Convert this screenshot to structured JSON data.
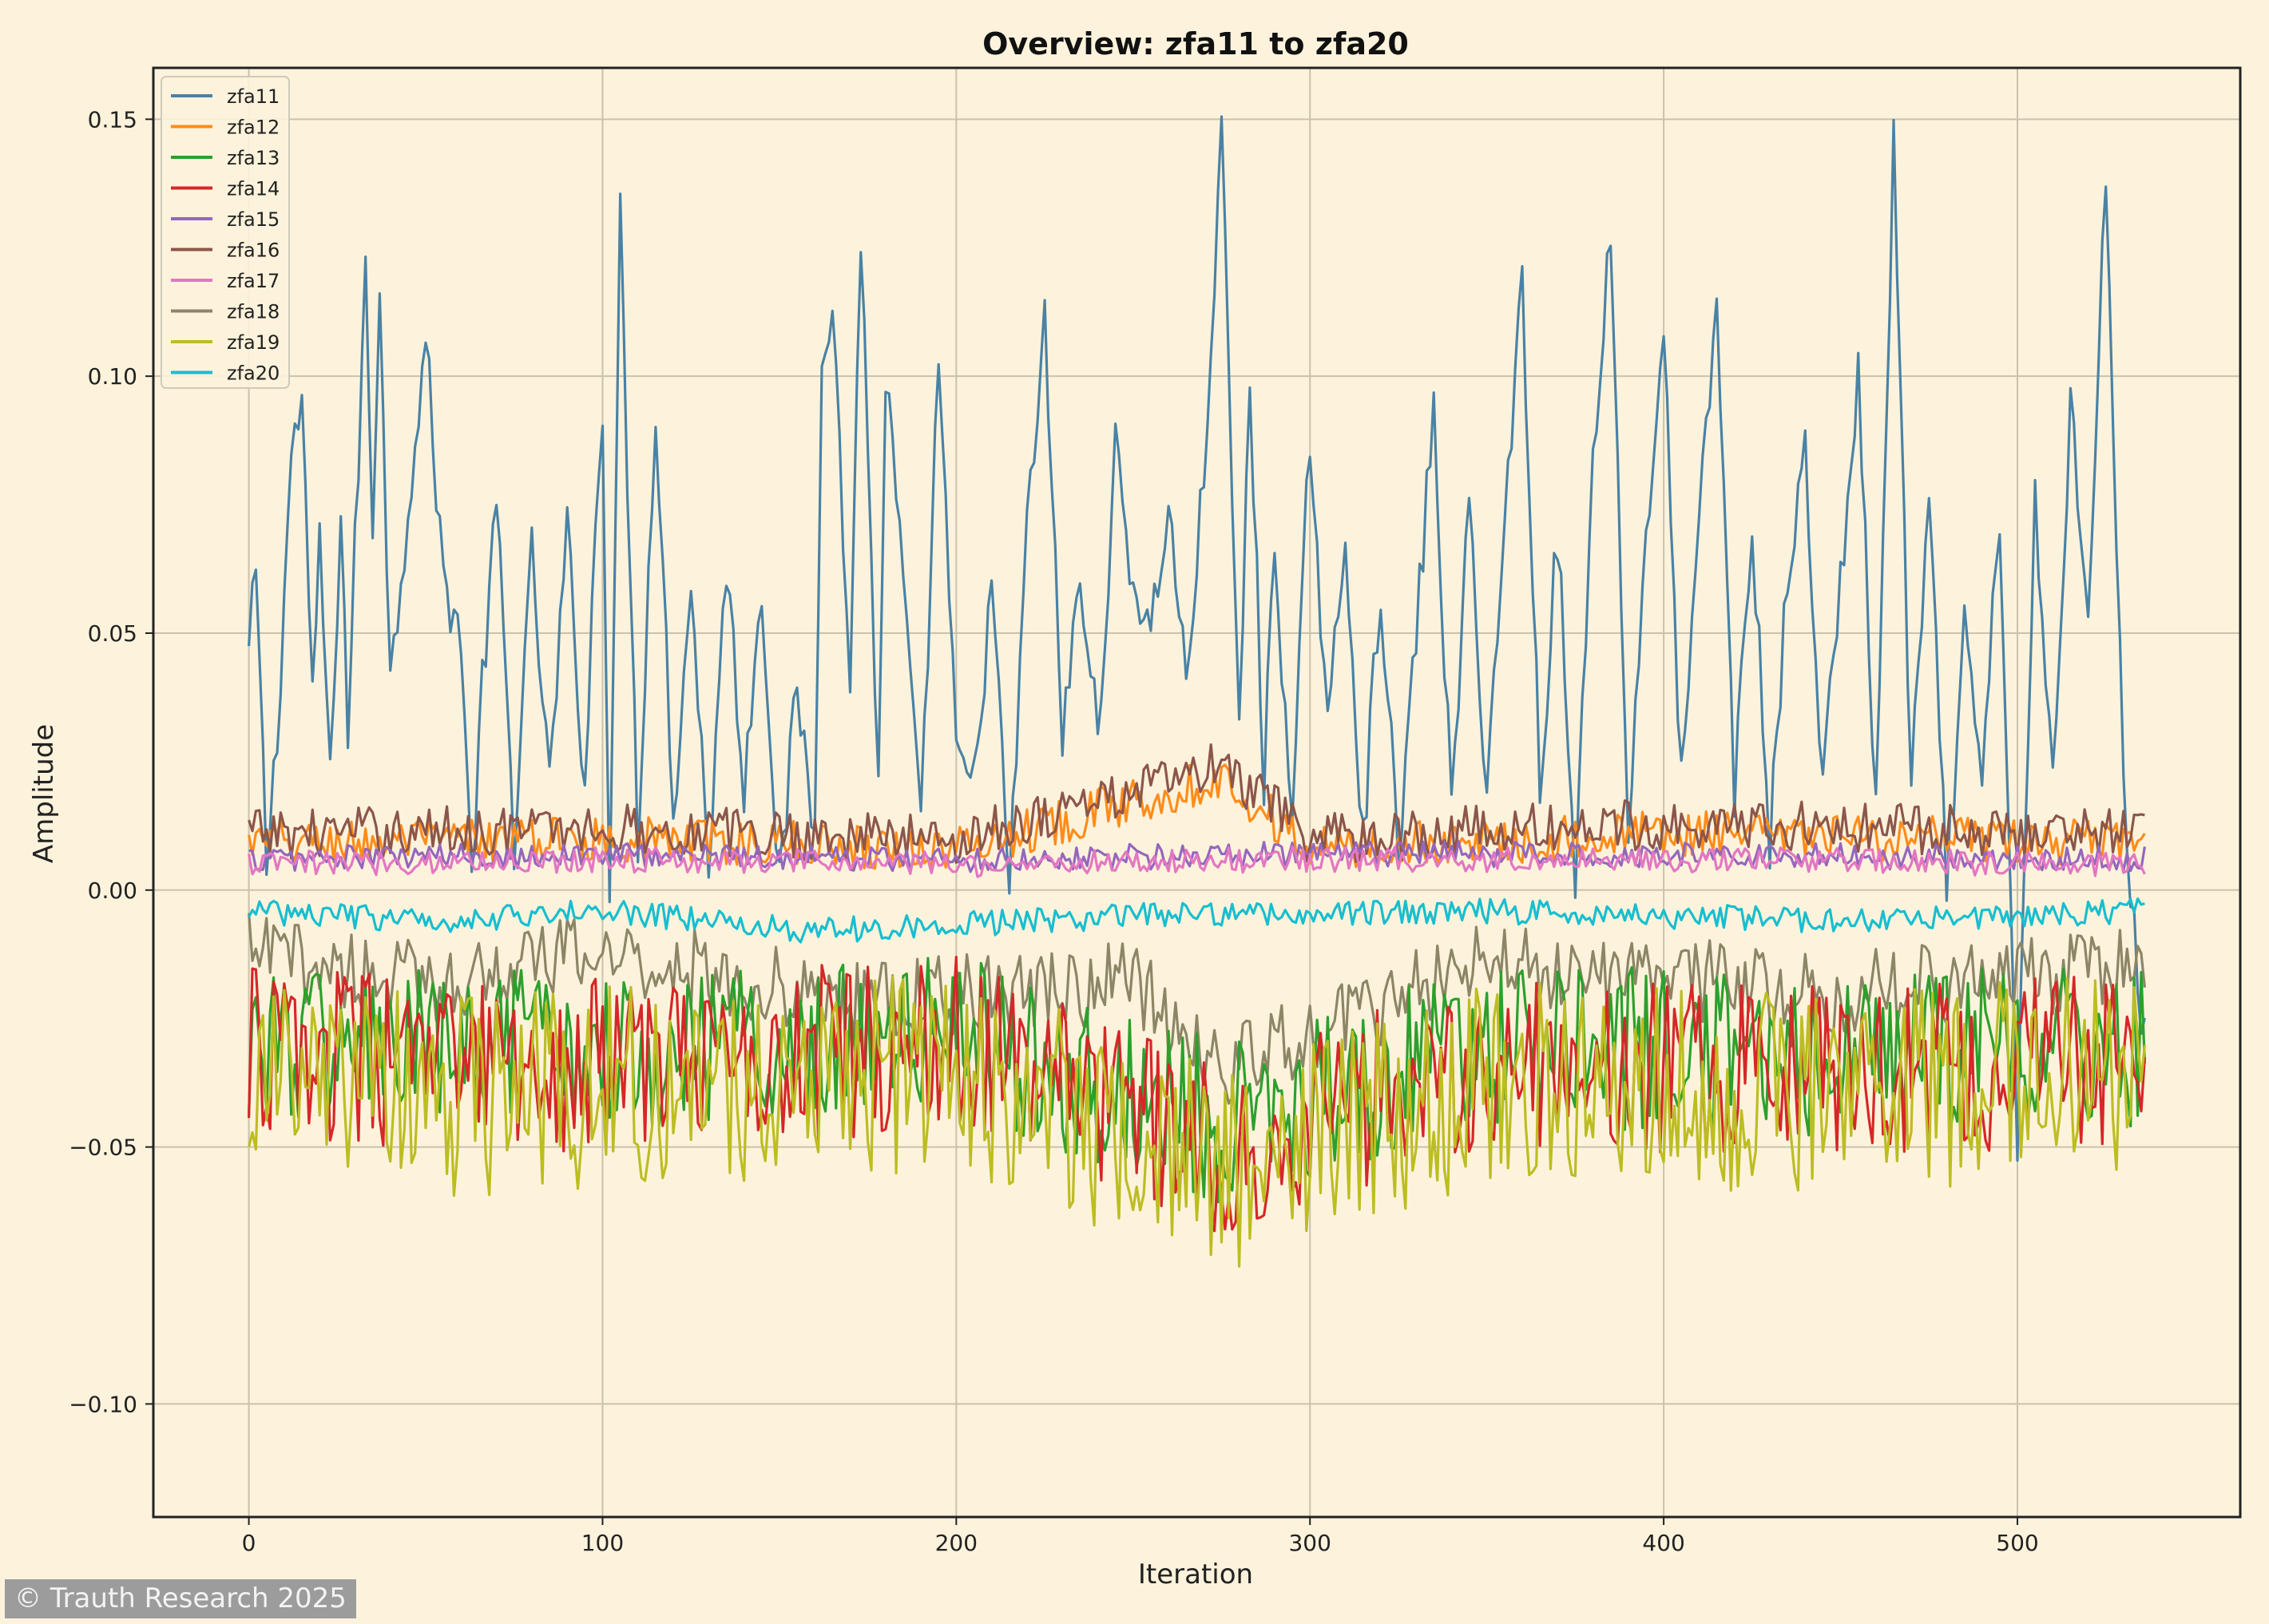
{
  "colors": {
    "background": "#fdf3dc",
    "plot_background": "#fdf3dc",
    "grid": "#c9c2ad",
    "axis": "#222222"
  },
  "chart_data": {
    "type": "line",
    "title": "Overview: zfa11 to zfa20",
    "xlabel": "Iteration",
    "ylabel": "Amplitude",
    "xlim": [
      -27,
      563
    ],
    "ylim": [
      -0.122,
      0.16
    ],
    "xticks": [
      0,
      100,
      200,
      300,
      400,
      500
    ],
    "xtick_labels": [
      "0",
      "100",
      "200",
      "300",
      "400",
      "500"
    ],
    "yticks": [
      0.15,
      0.1,
      0.05,
      0.0,
      -0.05,
      -0.1
    ],
    "ytick_labels": [
      "0.15",
      "0.10",
      "0.05",
      "0.00",
      "−0.05",
      "−0.10"
    ],
    "grid": true,
    "legend_position": "top-left",
    "n_points": 537,
    "series": [
      {
        "name": "zfa11",
        "color": "#4a82a4",
        "anchors": [
          [
            0,
            0.046
          ],
          [
            2,
            0.062
          ],
          [
            5,
            0.005
          ],
          [
            8,
            0.03
          ],
          [
            12,
            0.085
          ],
          [
            15,
            0.095
          ],
          [
            18,
            0.035
          ],
          [
            20,
            0.07
          ],
          [
            23,
            0.02
          ],
          [
            26,
            0.075
          ],
          [
            28,
            0.03
          ],
          [
            33,
            0.12
          ],
          [
            35,
            0.07
          ],
          [
            37,
            0.12
          ],
          [
            40,
            0.04
          ],
          [
            45,
            0.075
          ],
          [
            50,
            0.107
          ],
          [
            55,
            0.06
          ],
          [
            60,
            0.05
          ],
          [
            63,
            0.0
          ],
          [
            65,
            0.03
          ],
          [
            70,
            0.075
          ],
          [
            75,
            0.01
          ],
          [
            80,
            0.065
          ],
          [
            85,
            0.02
          ],
          [
            90,
            0.07
          ],
          [
            95,
            0.02
          ],
          [
            98,
            0.07
          ],
          [
            100,
            0.095
          ],
          [
            102,
            0.0
          ],
          [
            105,
            0.13
          ],
          [
            110,
            0.01
          ],
          [
            115,
            0.095
          ],
          [
            120,
            0.015
          ],
          [
            125,
            0.06
          ],
          [
            130,
            0.005
          ],
          [
            135,
            0.064
          ],
          [
            140,
            0.02
          ],
          [
            145,
            0.06
          ],
          [
            150,
            0.0
          ],
          [
            155,
            0.04
          ],
          [
            160,
            0.01
          ],
          [
            162,
            0.107
          ],
          [
            165,
            0.115
          ],
          [
            170,
            0.04
          ],
          [
            173,
            0.129
          ],
          [
            178,
            0.02
          ],
          [
            180,
            0.1
          ],
          [
            185,
            0.06
          ],
          [
            190,
            0.01
          ],
          [
            195,
            0.105
          ],
          [
            200,
            0.025
          ],
          [
            205,
            0.02
          ],
          [
            210,
            0.06
          ],
          [
            215,
            0.0
          ],
          [
            220,
            0.07
          ],
          [
            225,
            0.11
          ],
          [
            230,
            0.03
          ],
          [
            235,
            0.06
          ],
          [
            240,
            0.03
          ],
          [
            245,
            0.085
          ],
          [
            250,
            0.06
          ],
          [
            255,
            0.05
          ],
          [
            260,
            0.075
          ],
          [
            265,
            0.04
          ],
          [
            270,
            0.08
          ],
          [
            275,
            0.147
          ],
          [
            280,
            0.03
          ],
          [
            283,
            0.1
          ],
          [
            287,
            0.02
          ],
          [
            290,
            0.07
          ],
          [
            295,
            0.01
          ],
          [
            300,
            0.09
          ],
          [
            305,
            0.03
          ],
          [
            310,
            0.07
          ],
          [
            315,
            0.01
          ],
          [
            320,
            0.06
          ],
          [
            325,
            0.005
          ],
          [
            330,
            0.05
          ],
          [
            335,
            0.093
          ],
          [
            340,
            0.015
          ],
          [
            345,
            0.075
          ],
          [
            350,
            0.02
          ],
          [
            355,
            0.07
          ],
          [
            360,
            0.12
          ],
          [
            365,
            0.02
          ],
          [
            370,
            0.07
          ],
          [
            375,
            0.0
          ],
          [
            380,
            0.085
          ],
          [
            385,
            0.129
          ],
          [
            390,
            0.01
          ],
          [
            395,
            0.07
          ],
          [
            400,
            0.108
          ],
          [
            405,
            0.02
          ],
          [
            410,
            0.07
          ],
          [
            415,
            0.115
          ],
          [
            420,
            0.02
          ],
          [
            425,
            0.07
          ],
          [
            430,
            0.01
          ],
          [
            435,
            0.06
          ],
          [
            440,
            0.085
          ],
          [
            445,
            0.02
          ],
          [
            450,
            0.06
          ],
          [
            455,
            0.1
          ],
          [
            460,
            0.015
          ],
          [
            465,
            0.144
          ],
          [
            470,
            0.02
          ],
          [
            475,
            0.075
          ],
          [
            480,
            0.0
          ],
          [
            485,
            0.05
          ],
          [
            490,
            0.02
          ],
          [
            495,
            0.073
          ],
          [
            500,
            -0.048
          ],
          [
            505,
            0.075
          ],
          [
            510,
            0.02
          ],
          [
            515,
            0.095
          ],
          [
            520,
            0.055
          ],
          [
            525,
            0.14
          ],
          [
            530,
            0.02
          ],
          [
            535,
            -0.026
          ]
        ]
      },
      {
        "name": "zfa12",
        "color": "#ff8c1a",
        "anchors": [
          [
            0,
            0.009
          ],
          [
            100,
            0.01
          ],
          [
            200,
            0.008
          ],
          [
            275,
            0.022
          ],
          [
            300,
            0.008
          ],
          [
            400,
            0.011
          ],
          [
            536,
            0.009
          ]
        ]
      },
      {
        "name": "zfa13",
        "color": "#2ca02c",
        "anchors": [
          [
            0,
            -0.029
          ],
          [
            60,
            -0.032
          ],
          [
            120,
            -0.03
          ],
          [
            200,
            -0.028
          ],
          [
            275,
            -0.045
          ],
          [
            350,
            -0.03
          ],
          [
            450,
            -0.032
          ],
          [
            536,
            -0.03
          ]
        ]
      },
      {
        "name": "zfa14",
        "color": "#d62728",
        "anchors": [
          [
            0,
            -0.031
          ],
          [
            60,
            -0.035
          ],
          [
            120,
            -0.033
          ],
          [
            200,
            -0.03
          ],
          [
            275,
            -0.05
          ],
          [
            350,
            -0.033
          ],
          [
            450,
            -0.035
          ],
          [
            536,
            -0.033
          ]
        ]
      },
      {
        "name": "zfa15",
        "color": "#9467bd",
        "anchors": [
          [
            0,
            0.006
          ],
          [
            100,
            0.007
          ],
          [
            200,
            0.006
          ],
          [
            300,
            0.007
          ],
          [
            400,
            0.007
          ],
          [
            536,
            0.006
          ]
        ]
      },
      {
        "name": "zfa16",
        "color": "#8c564b",
        "anchors": [
          [
            0,
            0.011
          ],
          [
            100,
            0.012
          ],
          [
            200,
            0.01
          ],
          [
            275,
            0.024
          ],
          [
            300,
            0.01
          ],
          [
            400,
            0.013
          ],
          [
            536,
            0.011
          ]
        ]
      },
      {
        "name": "zfa17",
        "color": "#e377c2",
        "anchors": [
          [
            0,
            0.005
          ],
          [
            100,
            0.006
          ],
          [
            200,
            0.005
          ],
          [
            300,
            0.006
          ],
          [
            400,
            0.006
          ],
          [
            536,
            0.005
          ]
        ]
      },
      {
        "name": "zfa18",
        "color": "#8c8566",
        "anchors": [
          [
            0,
            -0.012
          ],
          [
            50,
            -0.018
          ],
          [
            100,
            -0.012
          ],
          [
            170,
            -0.022
          ],
          [
            250,
            -0.018
          ],
          [
            275,
            -0.035
          ],
          [
            350,
            -0.014
          ],
          [
            450,
            -0.02
          ],
          [
            536,
            -0.015
          ]
        ]
      },
      {
        "name": "zfa19",
        "color": "#bcbd22",
        "anchors": [
          [
            0,
            -0.037
          ],
          [
            60,
            -0.04
          ],
          [
            120,
            -0.038
          ],
          [
            200,
            -0.035
          ],
          [
            275,
            -0.055
          ],
          [
            350,
            -0.037
          ],
          [
            450,
            -0.04
          ],
          [
            536,
            -0.036
          ]
        ]
      },
      {
        "name": "zfa20",
        "color": "#17becf",
        "anchors": [
          [
            0,
            -0.004
          ],
          [
            50,
            -0.006
          ],
          [
            100,
            -0.004
          ],
          [
            160,
            -0.008
          ],
          [
            250,
            -0.005
          ],
          [
            350,
            -0.004
          ],
          [
            450,
            -0.006
          ],
          [
            536,
            -0.004
          ]
        ]
      }
    ]
  },
  "footer": {
    "watermark": "© Trauth Research 2025"
  }
}
